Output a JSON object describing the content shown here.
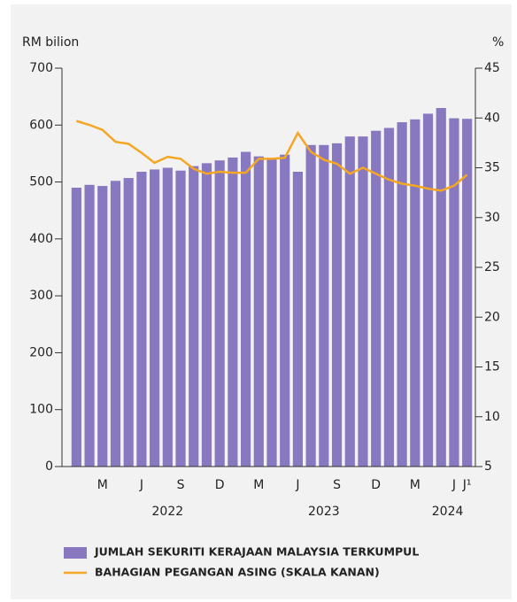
{
  "chart_data": {
    "type": "bar-line",
    "y_label": "RM bilion",
    "y2_label": "%",
    "categories": [
      null,
      null,
      "M",
      null,
      null,
      "J",
      null,
      null,
      "S",
      null,
      null,
      "D",
      null,
      null,
      "M",
      null,
      null,
      "J",
      null,
      null,
      "S",
      null,
      null,
      "D",
      null,
      null,
      "M",
      null,
      null,
      "J",
      "J¹"
    ],
    "years": [
      {
        "label": "2022",
        "at": 7
      },
      {
        "label": "2023",
        "at": 19
      },
      {
        "label": "2024",
        "at": 28.5
      }
    ],
    "series": [
      {
        "name": "JUMLAH SEKURITI KERAJAAN MALAYSIA TERKUMPUL",
        "color": "#8878bf",
        "kind": "bar",
        "values": [
          490,
          495,
          493,
          502,
          507,
          518,
          522,
          525,
          520,
          528,
          533,
          538,
          543,
          553,
          545,
          540,
          548,
          518,
          565,
          565,
          568,
          580,
          580,
          590,
          595,
          605,
          610,
          620,
          630,
          612,
          611
        ]
      },
      {
        "name": "BAHAGIAN PEGANGAN ASING (SKALA KANAN)",
        "color": "#f5a623",
        "kind": "line",
        "axis": "y2",
        "values": [
          39.7,
          39.3,
          38.8,
          37.6,
          37.4,
          36.5,
          35.5,
          36.1,
          35.9,
          34.9,
          34.4,
          34.6,
          34.5,
          34.5,
          35.9,
          35.9,
          36.0,
          38.5,
          36.6,
          35.8,
          35.4,
          34.4,
          35.0,
          34.4,
          33.8,
          33.4,
          33.2,
          32.9,
          32.7,
          33.2,
          34.3
        ]
      }
    ],
    "ylim": [
      0,
      700
    ],
    "yticks": [
      0,
      100,
      200,
      300,
      400,
      500,
      600,
      700
    ],
    "y2lim": [
      5,
      45
    ],
    "y2ticks": [
      5,
      10,
      15,
      20,
      25,
      30,
      35,
      40,
      45
    ]
  }
}
